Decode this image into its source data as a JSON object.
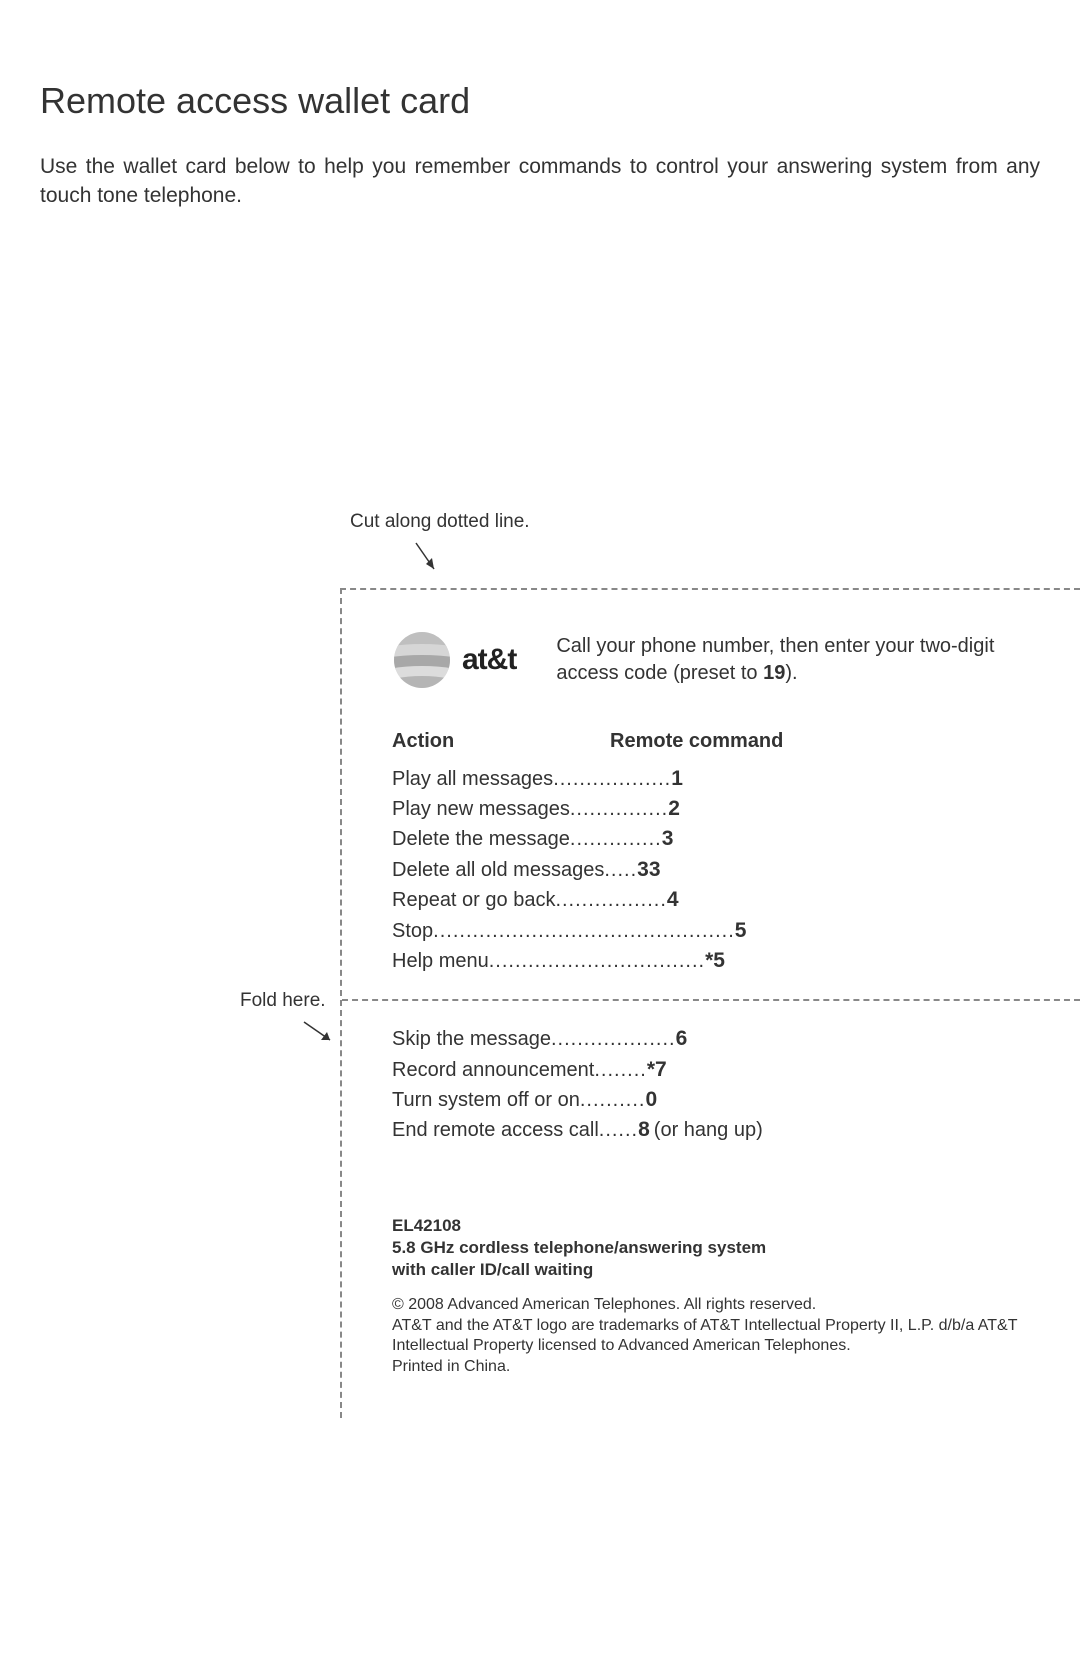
{
  "title": "Remote access wallet card",
  "intro": "Use the wallet card below to help you remember commands to control your answering system from any touch tone telephone.",
  "cut_label": "Cut along dotted line.",
  "fold_label": "Fold here.",
  "brand": {
    "name": "at&t",
    "globe_colors": [
      "#c9c9c9",
      "#b0b0b0",
      "#d8d8d8",
      "#a5a5a5",
      "#e2e2e2"
    ]
  },
  "instruction": {
    "prefix": "Call your phone number, then enter your two-digit access code (preset to ",
    "code": "19",
    "suffix": ")."
  },
  "headers": {
    "action": "Action",
    "command": "Remote command"
  },
  "commands_top": [
    {
      "action": "Play all messages",
      "dots": "..................",
      "code": "1",
      "suffix": ""
    },
    {
      "action": "Play new messages",
      "dots": "...............",
      "code": "2",
      "suffix": ""
    },
    {
      "action": "Delete the message",
      "dots": "..............",
      "code": "3",
      "suffix": ""
    },
    {
      "action": "Delete all old messages",
      "dots": ".....",
      "code": "33",
      "suffix": ""
    },
    {
      "action": "Repeat or go back",
      "dots": ".................",
      "code": "4",
      "suffix": ""
    },
    {
      "action": "Stop",
      "dots": "..............................................",
      "code": "5",
      "suffix": ""
    },
    {
      "action": "Help menu",
      "dots": ".................................",
      "code": "*5",
      "suffix": ""
    }
  ],
  "commands_bottom": [
    {
      "action": "Skip the message",
      "dots": "...................",
      "code": "6",
      "suffix": ""
    },
    {
      "action": "Record announcement",
      "dots": "........",
      "code": "*7",
      "suffix": ""
    },
    {
      "action": "Turn system off or on",
      "dots": "..........",
      "code": "0",
      "suffix": ""
    },
    {
      "action": "End remote access call",
      "dots": "......",
      "code": "8",
      "suffix": " (or hang up)"
    }
  ],
  "footer": {
    "model": "EL42108",
    "desc1": "5.8 GHz cordless telephone/answering system",
    "desc2": "with caller ID/call waiting",
    "legal1": "© 2008 Advanced American Telephones. All rights reserved.",
    "legal2": "AT&T and the AT&T logo are trademarks of AT&T Intellectual Property II, L.P. d/b/a AT&T Intellectual Property licensed to Advanced American Telephones.",
    "legal3": "Printed in China."
  },
  "style": {
    "page_bg": "#ffffff",
    "text_color": "#333333",
    "dash_color": "#888888",
    "title_fontsize": 36,
    "body_fontsize": 21,
    "card_fontsize": 20,
    "footer_fontsize": 17,
    "legal_fontsize": 16
  }
}
